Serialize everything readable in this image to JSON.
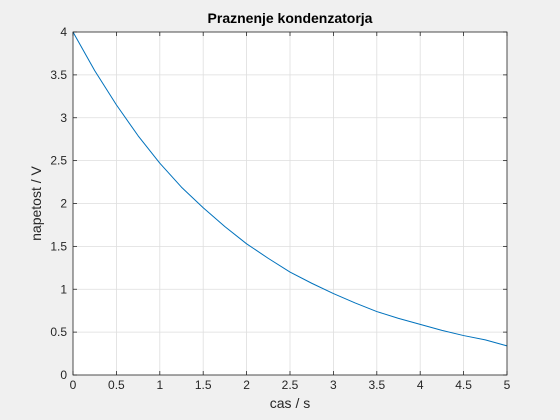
{
  "chart_data": {
    "type": "line",
    "title": "Praznenje kondenzatorja",
    "xlabel": "cas / s",
    "ylabel": "napetost / V",
    "xlim": [
      0,
      5
    ],
    "ylim": [
      0,
      4
    ],
    "xticks": [
      0,
      0.5,
      1,
      1.5,
      2,
      2.5,
      3,
      3.5,
      4,
      4.5,
      5
    ],
    "xtick_labels": [
      "0",
      "0.5",
      "1",
      "1.5",
      "2",
      "2.5",
      "3",
      "3.5",
      "4",
      "4.5",
      "5"
    ],
    "yticks": [
      0,
      0.5,
      1,
      1.5,
      2,
      2.5,
      3,
      3.5,
      4
    ],
    "ytick_labels": [
      "0",
      "0.5",
      "1",
      "1.5",
      "2",
      "2.5",
      "3",
      "3.5",
      "4"
    ],
    "grid": true,
    "series": [
      {
        "color": "#0072bd",
        "x": [
          0,
          0.25,
          0.5,
          0.75,
          1,
          1.25,
          1.5,
          1.75,
          2,
          2.25,
          2.5,
          2.75,
          3,
          3.25,
          3.5,
          3.75,
          4,
          4.25,
          4.5,
          4.75,
          5
        ],
        "y": [
          4.0,
          3.55,
          3.15,
          2.79,
          2.47,
          2.19,
          1.95,
          1.73,
          1.53,
          1.36,
          1.2,
          1.07,
          0.95,
          0.84,
          0.74,
          0.66,
          0.59,
          0.52,
          0.46,
          0.41,
          0.34
        ]
      }
    ]
  }
}
